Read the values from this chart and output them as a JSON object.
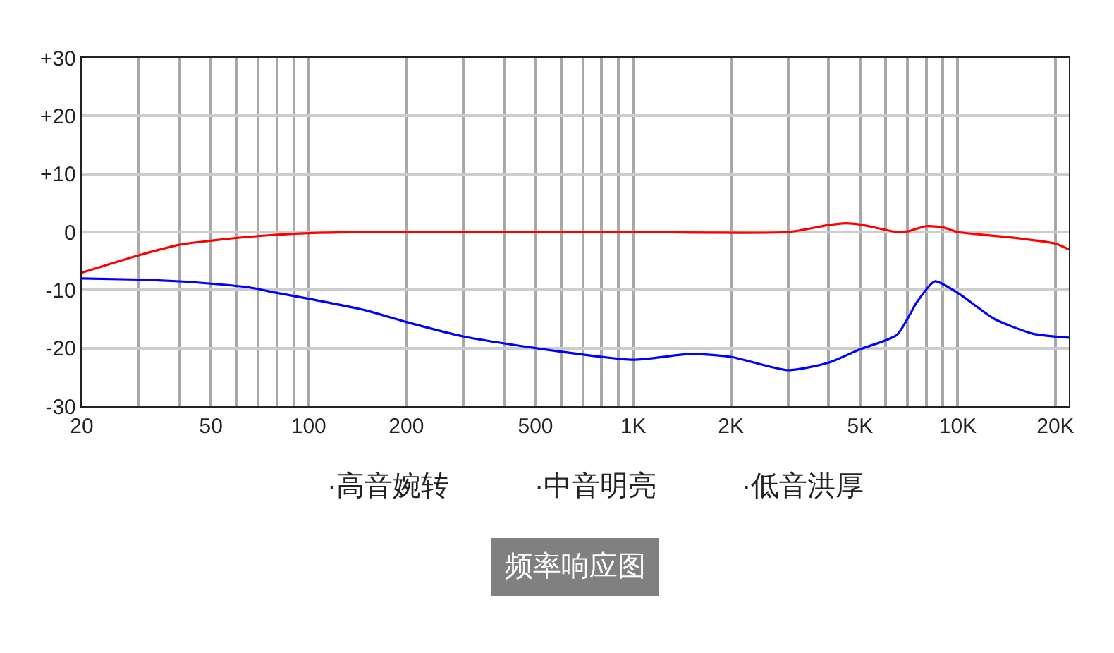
{
  "chart_data": {
    "type": "line",
    "title": "频率响应图",
    "log": "x",
    "grid": true,
    "marker": "none",
    "line_style": "solid",
    "xlim": [
      20,
      22000
    ],
    "xticks": [
      20,
      {
        "value": 30,
        "label": null
      },
      {
        "value": 40,
        "label": null
      },
      50,
      {
        "value": 60,
        "label": null
      },
      {
        "value": 70,
        "label": null
      },
      {
        "value": 80,
        "label": null
      },
      {
        "value": 90,
        "label": null
      },
      100,
      200,
      {
        "value": 300,
        "label": null
      },
      {
        "value": 400,
        "label": null
      },
      500,
      {
        "value": 600,
        "label": null
      },
      {
        "value": 700,
        "label": null
      },
      {
        "value": 800,
        "label": null
      },
      {
        "value": 900,
        "label": null
      },
      {
        "value": 1000,
        "label": "1K"
      },
      {
        "value": 2000,
        "label": "2K"
      },
      {
        "value": 3000,
        "label": null
      },
      {
        "value": 4000,
        "label": null
      },
      {
        "value": 5000,
        "label": "5K"
      },
      {
        "value": 6000,
        "label": null
      },
      {
        "value": 7000,
        "label": null
      },
      {
        "value": 8000,
        "label": null
      },
      {
        "value": 9000,
        "label": null
      },
      {
        "value": 10000,
        "label": "10K"
      },
      {
        "value": 20000,
        "label": "20K"
      }
    ],
    "ylim": [
      -30,
      30
    ],
    "yticks": [
      {
        "value": 30,
        "label": "+30"
      },
      {
        "value": 20,
        "label": "+20"
      },
      {
        "value": 10,
        "label": "+10"
      },
      0,
      -10,
      -20,
      -30
    ],
    "series": [
      {
        "color": "#ff0000",
        "x": [
          20,
          30,
          40,
          50,
          70,
          100,
          150,
          500,
          1000,
          3000,
          4000,
          4500,
          5000,
          6500,
          7000,
          8000,
          9000,
          10000,
          15000,
          20000,
          22000
        ],
        "values": [
          -7,
          -4,
          -2.2,
          -1.5,
          -0.7,
          -0.2,
          0,
          0,
          0,
          0,
          1.2,
          1.5,
          1.3,
          0,
          0.1,
          1,
          0.8,
          0,
          -1,
          -2,
          -3
        ]
      },
      {
        "color": "#0000ff",
        "x": [
          20,
          30,
          40,
          50,
          65,
          80,
          100,
          150,
          200,
          300,
          500,
          1000,
          1500,
          2000,
          3000,
          4000,
          5000,
          6500,
          7500,
          8500,
          10000,
          13000,
          17000,
          22000
        ],
        "values": [
          -8,
          -8.2,
          -8.5,
          -8.9,
          -9.5,
          -10.5,
          -11.5,
          -13.5,
          -15.5,
          -18,
          -20,
          -22,
          -21,
          -21.5,
          -23.8,
          -22.5,
          -20.2,
          -17.7,
          -12,
          -8.5,
          -10.5,
          -15,
          -17.5,
          -18.2
        ]
      }
    ],
    "annotations": [
      "·高音婉转",
      "·中音明亮",
      "·低音洪厚"
    ]
  }
}
